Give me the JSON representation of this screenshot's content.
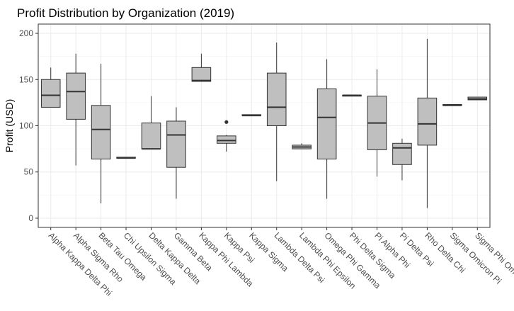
{
  "chart_data": {
    "type": "box",
    "title": "Profit Distribution by Organization (2019)",
    "xlabel": "",
    "ylabel": "Profit (USD)",
    "ylim": [
      -10,
      210
    ],
    "yticks": [
      0,
      50,
      100,
      150,
      200
    ],
    "grid": true,
    "box_color": "#bfbfbf",
    "categories": [
      "Alpha Kappa Delta Phi",
      "Alpha Sigma Rho",
      "Beta Tau Omega",
      "Chi Upsilon Sigma",
      "Delta Kappa Delta",
      "Gamma Beta",
      "Kappa Phi Lambda",
      "Kappa Psi",
      "Kappa Sigma",
      "Lambda Delta Psi",
      "Lambda Phi Epsilon",
      "Omega Phi Gamma",
      "Phi Delta Sigma",
      "Pi Alpha Phi",
      "Pi Delta Psi",
      "Rho Delta Chi",
      "Sigma Omicron Pi",
      "Sigma Phi Omega"
    ],
    "boxes": [
      {
        "min": 120,
        "q1": 120,
        "median": 133,
        "q3": 150,
        "max": 163,
        "outliers": []
      },
      {
        "min": 57,
        "q1": 107,
        "median": 137,
        "q3": 157,
        "max": 178,
        "outliers": []
      },
      {
        "min": 16,
        "q1": 64,
        "median": 96,
        "q3": 122,
        "max": 167,
        "outliers": []
      },
      {
        "min": 65,
        "q1": 65,
        "median": 65,
        "q3": 66,
        "max": 66,
        "outliers": []
      },
      {
        "min": 75,
        "q1": 75,
        "median": 75,
        "q3": 103,
        "max": 132,
        "outliers": []
      },
      {
        "min": 21,
        "q1": 55,
        "median": 90,
        "q3": 105,
        "max": 120,
        "outliers": []
      },
      {
        "min": 148,
        "q1": 148,
        "median": 149,
        "q3": 163,
        "max": 178,
        "outliers": []
      },
      {
        "min": 72,
        "q1": 81,
        "median": 84,
        "q3": 89,
        "max": 90,
        "outliers": [
          104
        ]
      },
      {
        "min": 111,
        "q1": 111,
        "median": 111,
        "q3": 112,
        "max": 112,
        "outliers": []
      },
      {
        "min": 40,
        "q1": 100,
        "median": 120,
        "q3": 157,
        "max": 190,
        "outliers": []
      },
      {
        "min": 75,
        "q1": 75,
        "median": 77,
        "q3": 79,
        "max": 81,
        "outliers": []
      },
      {
        "min": 21,
        "q1": 64,
        "median": 109,
        "q3": 140,
        "max": 172,
        "outliers": []
      },
      {
        "min": 132,
        "q1": 132,
        "median": 133,
        "q3": 133,
        "max": 133,
        "outliers": []
      },
      {
        "min": 45,
        "q1": 74,
        "median": 103,
        "q3": 132,
        "max": 161,
        "outliers": []
      },
      {
        "min": 41,
        "q1": 58,
        "median": 76,
        "q3": 81,
        "max": 86,
        "outliers": []
      },
      {
        "min": 11,
        "q1": 79,
        "median": 102,
        "q3": 130,
        "max": 194,
        "outliers": []
      },
      {
        "min": 122,
        "q1": 122,
        "median": 122,
        "q3": 123,
        "max": 123,
        "outliers": []
      },
      {
        "min": 128,
        "q1": 128,
        "median": 129,
        "q3": 131,
        "max": 131,
        "outliers": []
      }
    ]
  }
}
